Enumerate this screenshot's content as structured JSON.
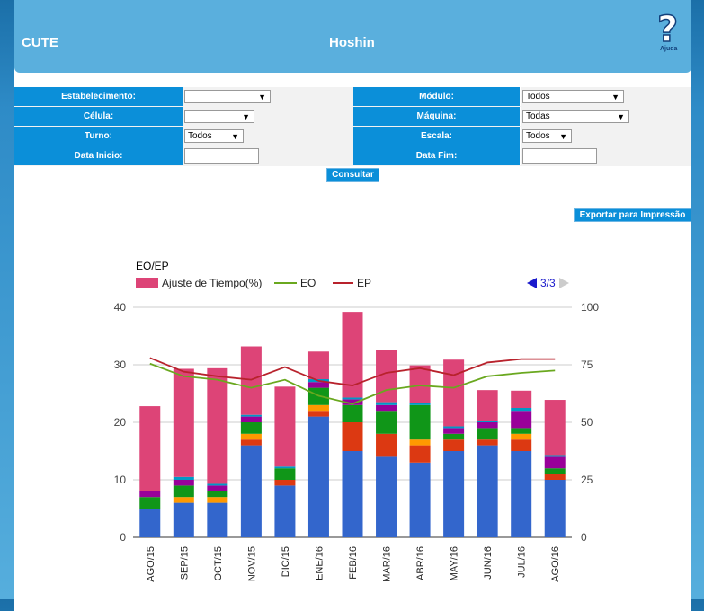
{
  "header": {
    "app_name": "CUTE",
    "page_title": "Hoshin",
    "help_label": "Ajuda"
  },
  "filters": {
    "estabelecimento_label": "Estabelecimento:",
    "estabelecimento_value": "",
    "modulo_label": "Módulo:",
    "modulo_value": "Todos",
    "celula_label": "Célula:",
    "celula_value": "",
    "maquina_label": "Máquina:",
    "maquina_value": "Todas",
    "turno_label": "Turno:",
    "turno_value": "Todos",
    "escala_label": "Escala:",
    "escala_value": "Todos",
    "data_inicio_label": "Data Inicio:",
    "data_inicio_value": "",
    "data_fim_label": "Data Fim:",
    "data_fim_value": ""
  },
  "buttons": {
    "consultar": "Consultar",
    "exportar": "Exportar para Impressão"
  },
  "chart_data": {
    "type": "bar",
    "title": "EO/EP",
    "pagination": "3/3",
    "categories": [
      "AGO/15",
      "SEP/15",
      "OCT/15",
      "NOV/15",
      "DIC/15",
      "ENE/16",
      "FEB/16",
      "MAR/16",
      "ABR/16",
      "MAY/16",
      "JUN/16",
      "JUL/16",
      "AGO/16"
    ],
    "ylim": [
      0,
      40
    ],
    "y2lim": [
      0,
      100
    ],
    "yticks": [
      "0",
      "10",
      "20",
      "30",
      "40"
    ],
    "y2ticks": [
      "0",
      "25",
      "50",
      "75",
      "100"
    ],
    "legend": [
      "Ajuste de Tiempo(%)",
      "EO",
      "EP"
    ],
    "stack_series": [
      {
        "color": "#3366cc",
        "values": [
          5,
          6,
          6,
          16,
          9,
          21,
          15,
          14,
          13,
          15,
          16,
          15,
          10
        ]
      },
      {
        "color": "#dc3912",
        "values": [
          0,
          0,
          0,
          1,
          1,
          1,
          5,
          4,
          3,
          2,
          1,
          2,
          1
        ]
      },
      {
        "color": "#ff9900",
        "values": [
          0,
          1,
          1,
          1,
          0,
          1,
          0,
          0,
          1,
          0,
          0,
          1,
          0
        ]
      },
      {
        "color": "#109618",
        "values": [
          2,
          2,
          1,
          2,
          2,
          3,
          3,
          4,
          6,
          1,
          2,
          1,
          1
        ]
      },
      {
        "color": "#990099",
        "values": [
          1,
          1,
          1,
          1,
          0,
          1,
          1,
          1,
          0,
          1,
          1,
          3,
          2
        ]
      },
      {
        "color": "#0099c6",
        "values": [
          0,
          0.5,
          0.3,
          0.3,
          0.3,
          0.5,
          0.3,
          0.5,
          0.3,
          0.3,
          0.3,
          0.5,
          0.3
        ]
      },
      {
        "color": "#dd4477",
        "values": [
          14.8,
          18.8,
          20.1,
          11.9,
          13.9,
          4.8,
          14.9,
          9.1,
          6.6,
          11.6,
          5.3,
          3.0,
          9.6
        ]
      }
    ],
    "series": [
      {
        "name": "EO",
        "color": "#6aa81f",
        "values": [
          75.5,
          70,
          68.5,
          65,
          68.5,
          61.5,
          58,
          64,
          66,
          65,
          70,
          71.5,
          72.5
        ]
      },
      {
        "name": "EP",
        "color": "#b8222c",
        "values": [
          78,
          72,
          70,
          68.5,
          74,
          68,
          66,
          71.5,
          73.5,
          70.5,
          76,
          77.5,
          77.5
        ]
      }
    ]
  }
}
